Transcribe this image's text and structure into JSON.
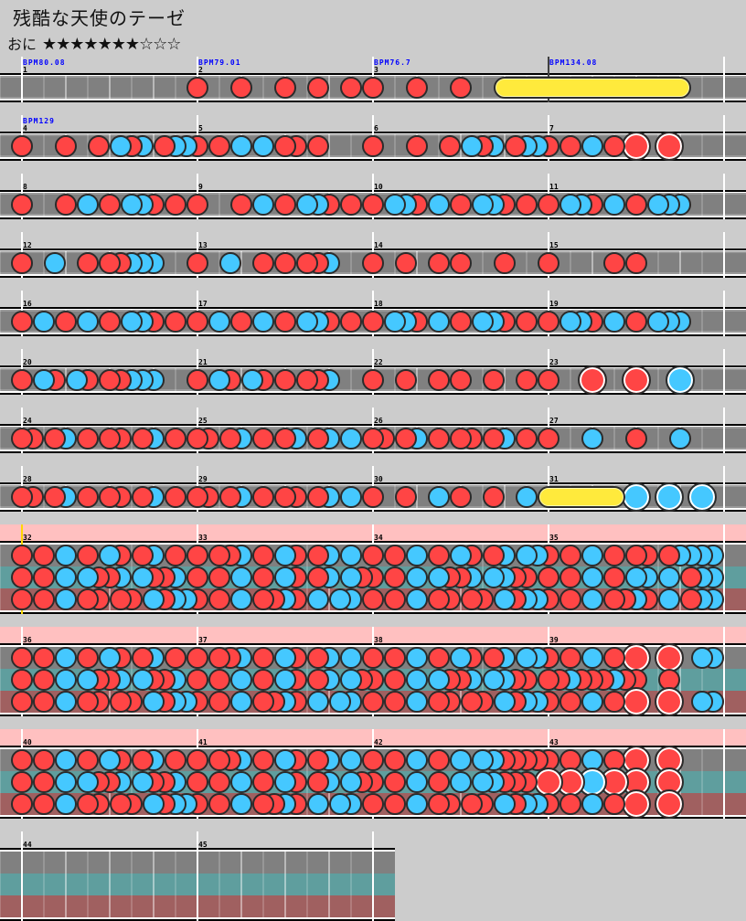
{
  "title": "残酷な天使のテーゼ",
  "difficulty": {
    "label": "おに",
    "stars_filled": 7,
    "stars_total": 10,
    "stars_text": "★★★★★★★☆☆☆"
  },
  "colors": {
    "background": "#cccccc",
    "lane_normal": "#808080",
    "lane_expert": "#5f9e9e",
    "lane_master": "#a06060",
    "branch_header": "#ffc0c0",
    "don": "#ff4545",
    "ka": "#45c8ff",
    "roll": "#ffea3c",
    "bpm_text": "#0000ff",
    "branch_start_line": "#ffd800"
  },
  "rows": [
    {
      "kind": "single",
      "segments": [
        {
          "measure": "1",
          "bpm": "BPM80.08",
          "notes": "0000000000000000"
        },
        {
          "measure": "2",
          "bpm": "BPM79.01",
          "notes": "1000100010010010"
        },
        {
          "measure": "3",
          "bpm": "BPM76.7",
          "notes": "1000100010005000"
        },
        {
          "measure": "",
          "bpm": "BPM134.08",
          "notes": "0000000000008000"
        }
      ]
    },
    {
      "kind": "single",
      "segments": [
        {
          "measure": "4",
          "bpm": "BPM129",
          "notes": "1000100102120122"
        },
        {
          "measure": "5",
          "notes": "1010202011010000"
        },
        {
          "measure": "6",
          "notes": "1000100102120122"
        },
        {
          "measure": "7",
          "notes": "1010201030030000"
        }
      ]
    },
    {
      "kind": "single",
      "segments": [
        {
          "measure": "8",
          "notes": "1000102010221010"
        },
        {
          "measure": "9",
          "notes": "1000102010221010"
        },
        {
          "measure": "10",
          "notes": "1022102010221010"
        },
        {
          "measure": "11",
          "notes": "1022102010222000"
        }
      ]
    },
    {
      "kind": "single",
      "segments": [
        {
          "measure": "12",
          "notes": "1002001011222000"
        },
        {
          "measure": "13",
          "notes": "1002001010112000"
        },
        {
          "measure": "14",
          "notes": "1001001010001000"
        },
        {
          "measure": "15",
          "notes": "1000001010000000"
        }
      ]
    },
    {
      "kind": "single",
      "segments": [
        {
          "measure": "16",
          "notes": "1020102010221010"
        },
        {
          "measure": "17",
          "notes": "1020102010221010"
        },
        {
          "measure": "18",
          "notes": "1022102010221010"
        },
        {
          "measure": "19",
          "notes": "1022102010222000"
        }
      ]
    },
    {
      "kind": "single",
      "segments": [
        {
          "measure": "20",
          "notes": "1021021011222000"
        },
        {
          "measure": "21",
          "notes": "1021021010112000"
        },
        {
          "measure": "22",
          "notes": "1001001010010010"
        },
        {
          "measure": "23",
          "notes": "1000300030004000"
        }
      ]
    },
    {
      "kind": "single",
      "segments": [
        {
          "measure": "24",
          "notes": "1101201011012010"
        },
        {
          "measure": "25",
          "notes": "1101201012012020"
        },
        {
          "measure": "26",
          "notes": "1101201011012010"
        },
        {
          "measure": "27",
          "notes": "1000200010002000"
        }
      ]
    },
    {
      "kind": "single",
      "segments": [
        {
          "measure": "28",
          "notes": "1101201011012010"
        },
        {
          "measure": "29",
          "notes": "1101201011012020"
        },
        {
          "measure": "30",
          "notes": "1001002010010020"
        },
        {
          "measure": "31",
          "notes": "5000008040040040"
        }
      ]
    },
    {
      "kind": "branch",
      "branch_start": true,
      "segments": [
        {
          "measure": "32",
          "normal": "1010201021012010",
          "expert": "1010202112021120",
          "master": "1010201101102122"
        },
        {
          "measure": "33",
          "normal": "1011201021012020",
          "expert": "1010201021012021",
          "master": "1010201121020220"
        },
        {
          "measure": "34",
          "normal": "1010201021012022",
          "expert": "1010202112022110",
          "master": "1010201101102122"
        },
        {
          "measure": "35",
          "normal": "1010201011012222",
          "expert": "1010201022020122",
          "master": "1010201121020122"
        }
      ]
    },
    {
      "kind": "branch",
      "segments": [
        {
          "measure": "36",
          "normal": "1010201021012010",
          "expert": "1010202112021120",
          "master": "1010201101102122"
        },
        {
          "measure": "37",
          "normal": "1011201021012020",
          "expert": "1010201021012021",
          "master": "1010201121020220"
        },
        {
          "measure": "38",
          "normal": "1010201021012022",
          "expert": "1010202112022110",
          "master": "1010201101102122"
        },
        {
          "measure": "39",
          "normal": "1010201030030022",
          "expert": "1121112110010000",
          "master": "1010201030030022"
        }
      ]
    },
    {
      "kind": "branch",
      "segments": [
        {
          "measure": "40",
          "normal": "1010201021012010",
          "expert": "1010202112021120",
          "master": "1010201101102122"
        },
        {
          "measure": "41",
          "normal": "1011201021012020",
          "expert": "1010201021012021",
          "master": "1010201121020220"
        },
        {
          "measure": "42",
          "normal": "1010201020221111",
          "expert": "1010201020221110",
          "master": "1010201101102122"
        },
        {
          "measure": "43",
          "normal": "1010201030030000",
          "expert": "3030403030030000",
          "master": "1010201030030000"
        }
      ]
    },
    {
      "kind": "branch",
      "final": true,
      "segments": [
        {
          "measure": "44",
          "normal": "0000000000000000",
          "expert": "0000000000000000",
          "master": "0000000000000000"
        },
        {
          "measure": "45",
          "normal": "0000000000000000",
          "expert": "0000000000000000",
          "master": "0000000000000000"
        }
      ]
    }
  ]
}
